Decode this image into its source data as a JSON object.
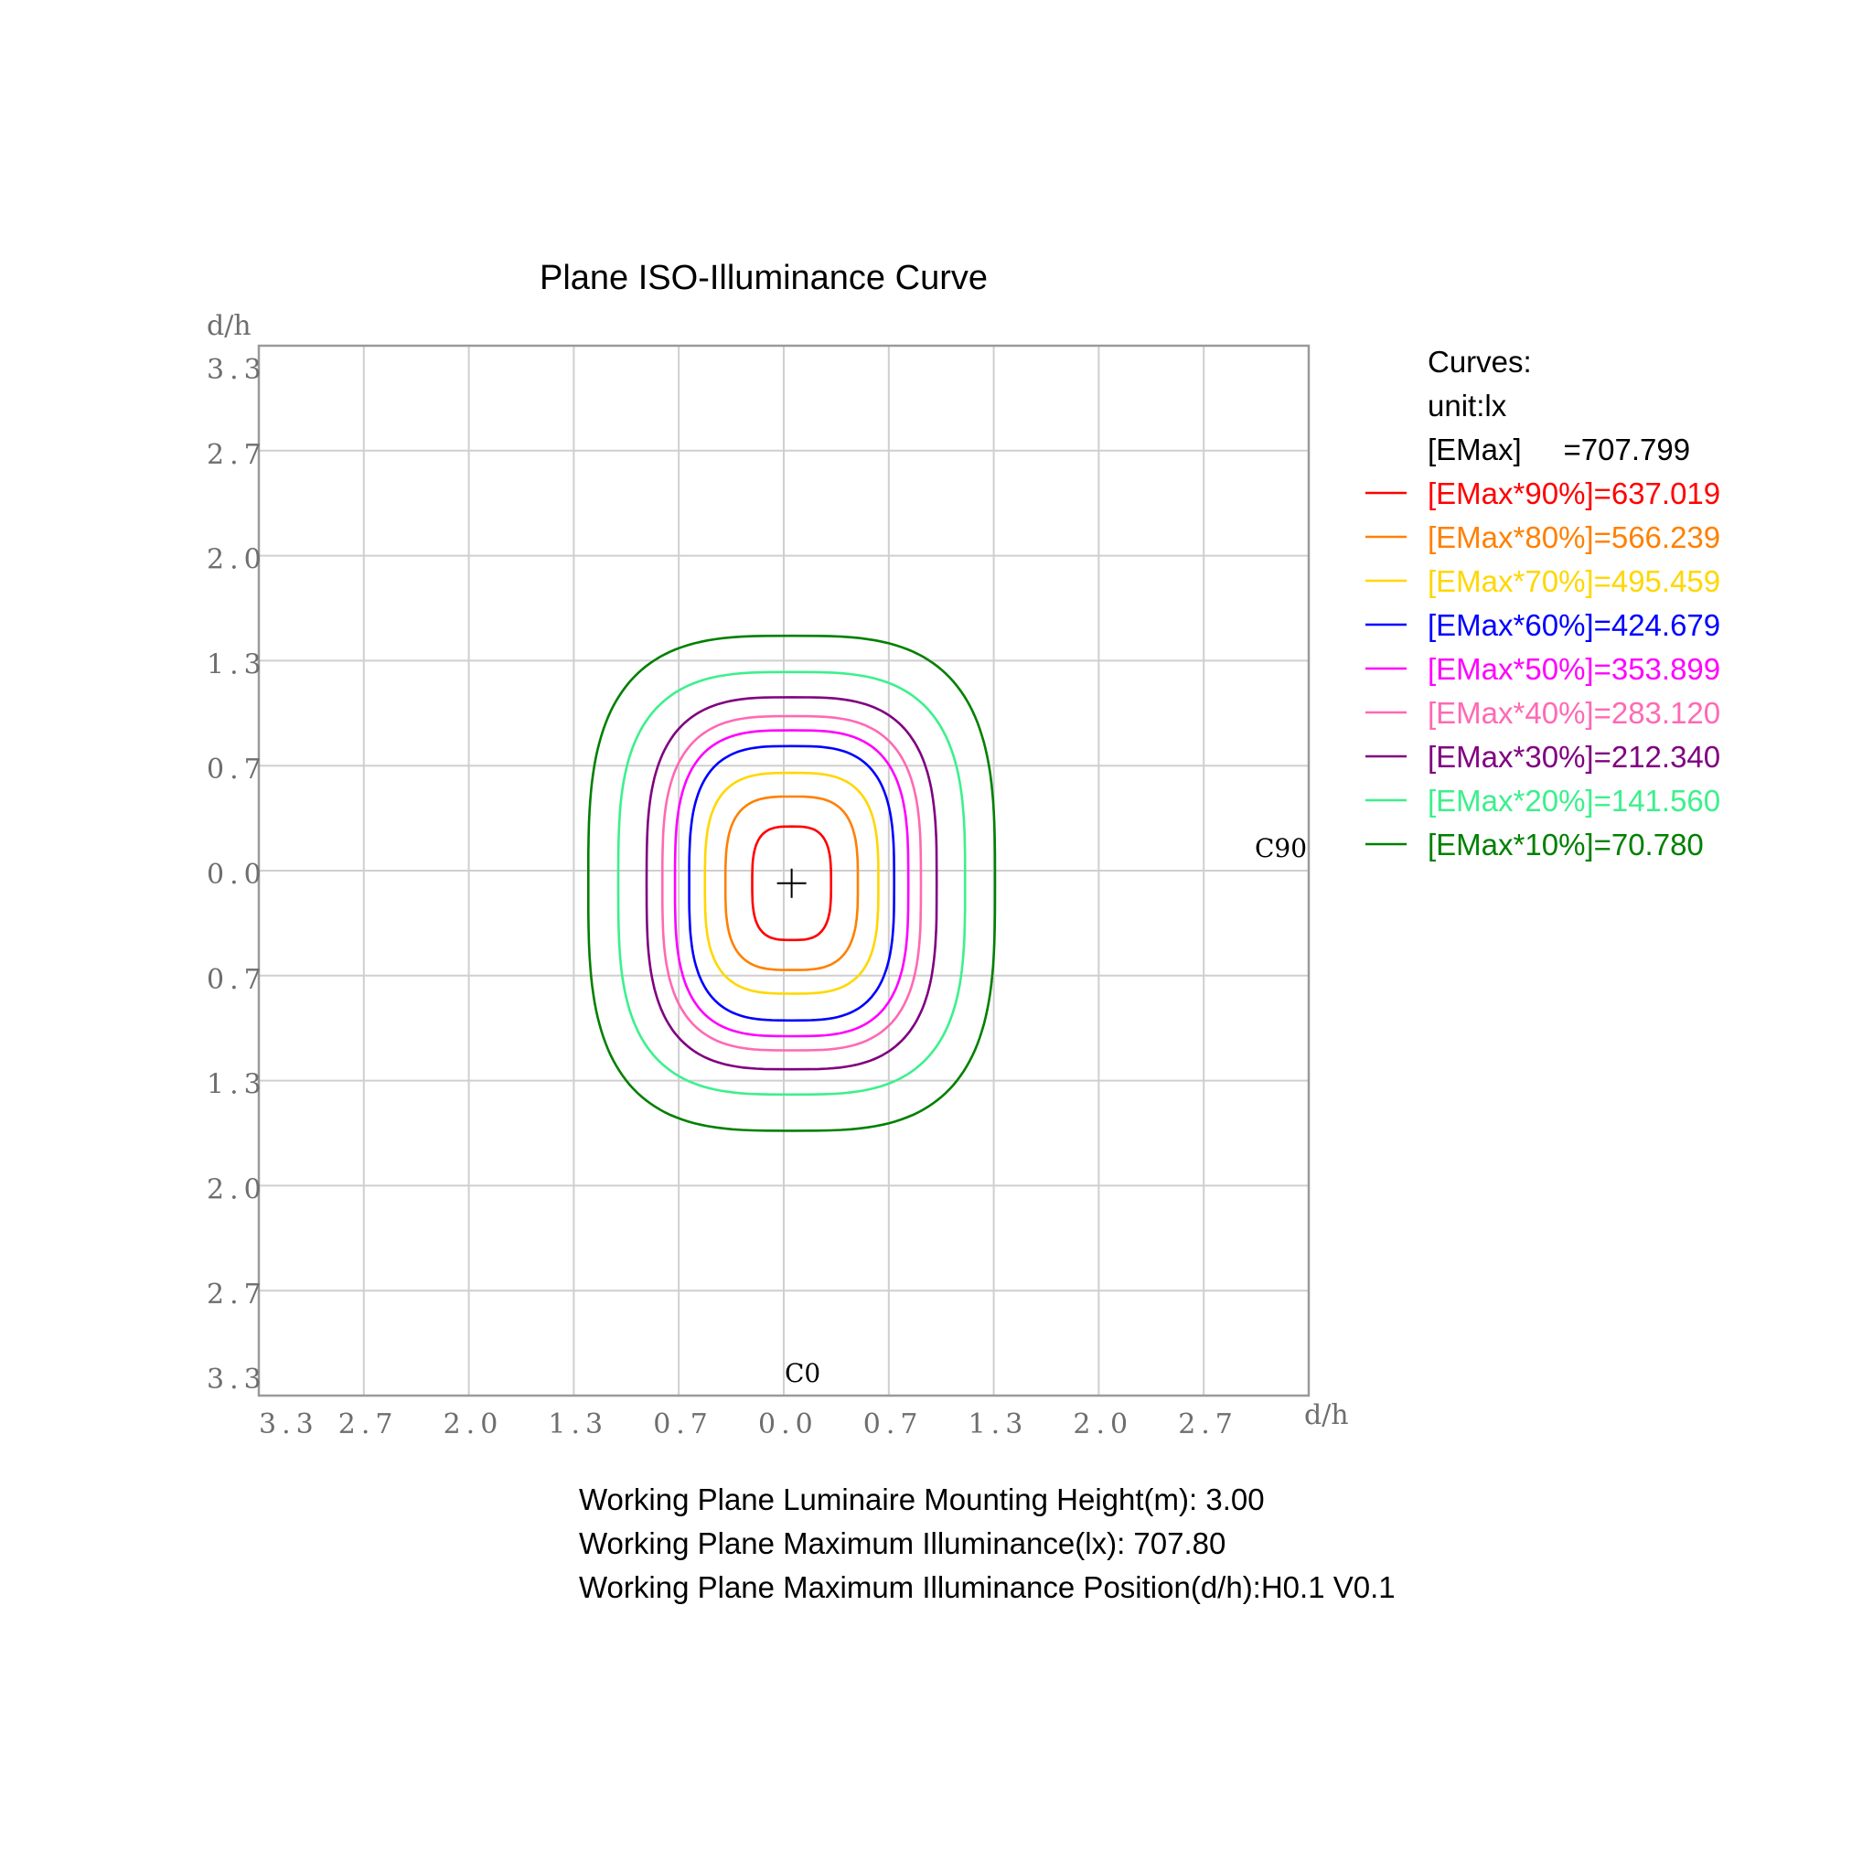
{
  "chart_data": {
    "type": "contour",
    "title": "Plane ISO-Illuminance Curve",
    "y_axis_label": "d/h",
    "x_axis_label": "d/h",
    "c0_label": "C0",
    "c90_label": "C90",
    "y_ticks": [
      "3.3",
      "2.7",
      "2.0",
      "1.3",
      "0.7",
      "0.0",
      "0.7",
      "1.3",
      "2.0",
      "2.7",
      "3.3"
    ],
    "x_ticks": [
      "3.3",
      "2.7",
      "2.0",
      "1.3",
      "0.7",
      "0.0",
      "0.7",
      "1.3",
      "2.0",
      "2.7"
    ],
    "xlim": [
      -3.33,
      3.33
    ],
    "ylim": [
      -3.33,
      3.33
    ],
    "grid": true,
    "center": [
      0.05,
      -0.08
    ],
    "legend": {
      "header": "Curves:",
      "unit": "unit:lx",
      "emax": "[EMax]     =707.799",
      "position": "right"
    },
    "series": [
      {
        "name": "[EMax*90%]=637.019",
        "color": "#ff0000",
        "value": 637.019,
        "half_width": 0.25,
        "half_height": 0.36
      },
      {
        "name": "[EMax*80%]=566.239",
        "color": "#ff8000",
        "value": 566.239,
        "half_width": 0.42,
        "half_height": 0.55
      },
      {
        "name": "[EMax*70%]=495.459",
        "color": "#ffd700",
        "value": 495.459,
        "half_width": 0.55,
        "half_height": 0.7
      },
      {
        "name": "[EMax*60%]=424.679",
        "color": "#0000ff",
        "value": 424.679,
        "half_width": 0.65,
        "half_height": 0.87
      },
      {
        "name": "[EMax*50%]=353.899",
        "color": "#ff00ff",
        "value": 353.899,
        "half_width": 0.74,
        "half_height": 0.97
      },
      {
        "name": "[EMax*40%]=283.120",
        "color": "#ff69b4",
        "value": 283.12,
        "half_width": 0.82,
        "half_height": 1.06
      },
      {
        "name": "[EMax*30%]=212.340",
        "color": "#800080",
        "value": 212.34,
        "half_width": 0.92,
        "half_height": 1.18
      },
      {
        "name": "[EMax*20%]=141.560",
        "color": "#3cf08c",
        "value": 141.56,
        "half_width": 1.1,
        "half_height": 1.34
      },
      {
        "name": "[EMax*10%]=70.780",
        "color": "#008000",
        "value": 70.78,
        "half_width": 1.29,
        "half_height": 1.57
      }
    ]
  },
  "info": {
    "line1": "Working Plane Luminaire Mounting Height(m): 3.00",
    "line2": "Working Plane Maximum Illuminance(lx): 707.80",
    "line3": "Working Plane Maximum Illuminance Position(d/h):H0.1 V0.1"
  }
}
